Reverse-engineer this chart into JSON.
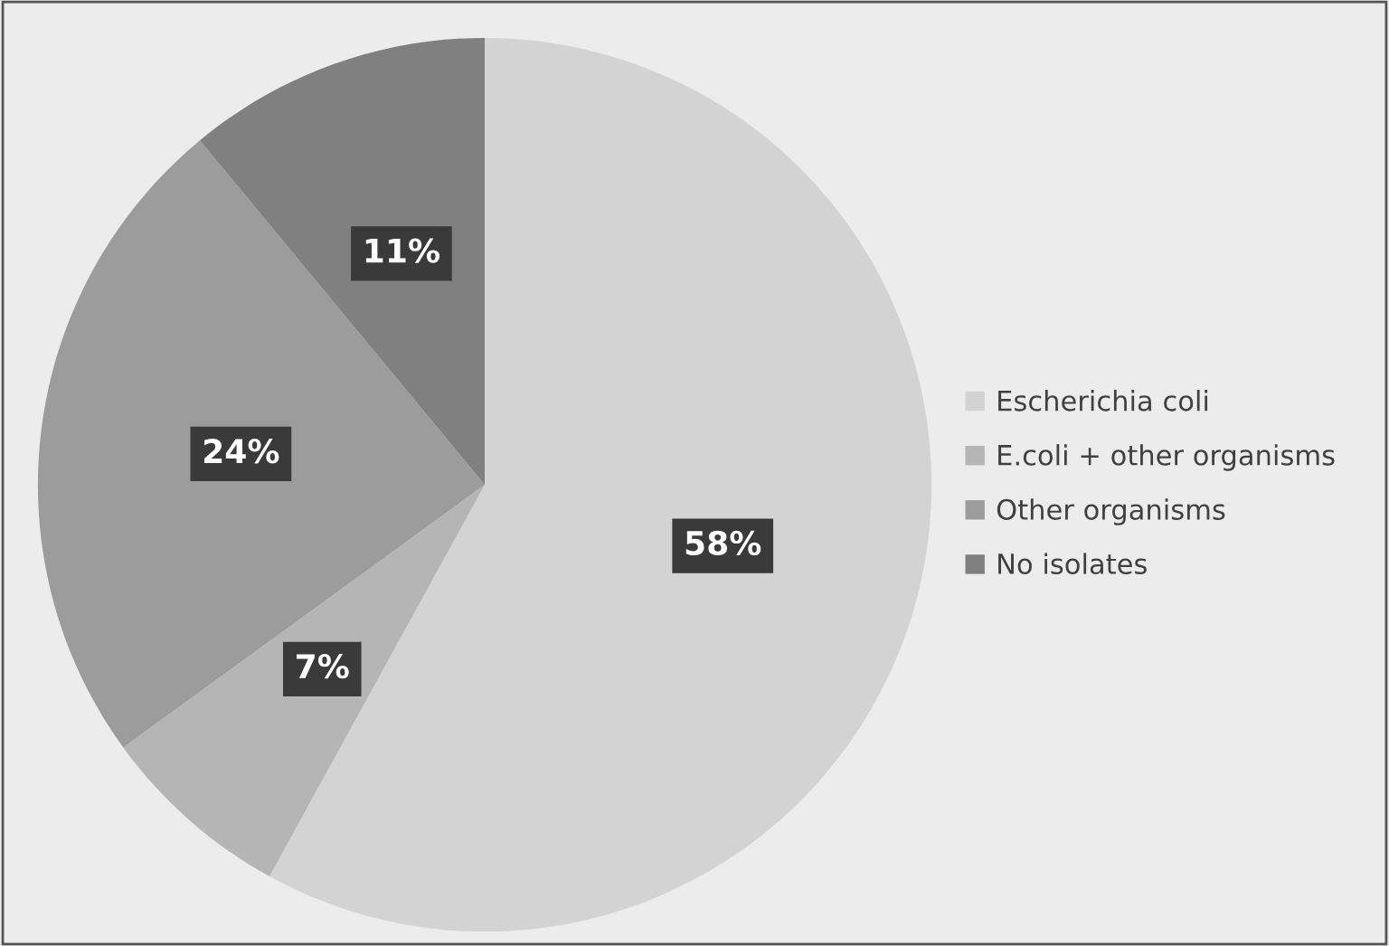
{
  "chart_data": {
    "type": "pie",
    "categories": [
      "Escherichia coli",
      "E.coli + other organisms",
      "Other organisms",
      "No isolates"
    ],
    "values": [
      58,
      7,
      24,
      11
    ],
    "colors": [
      "#d3d3d3",
      "#b5b5b5",
      "#9c9c9c",
      "#808080"
    ],
    "value_labels": [
      "58%",
      "7%",
      "24%",
      "11%"
    ],
    "legend": "right"
  }
}
